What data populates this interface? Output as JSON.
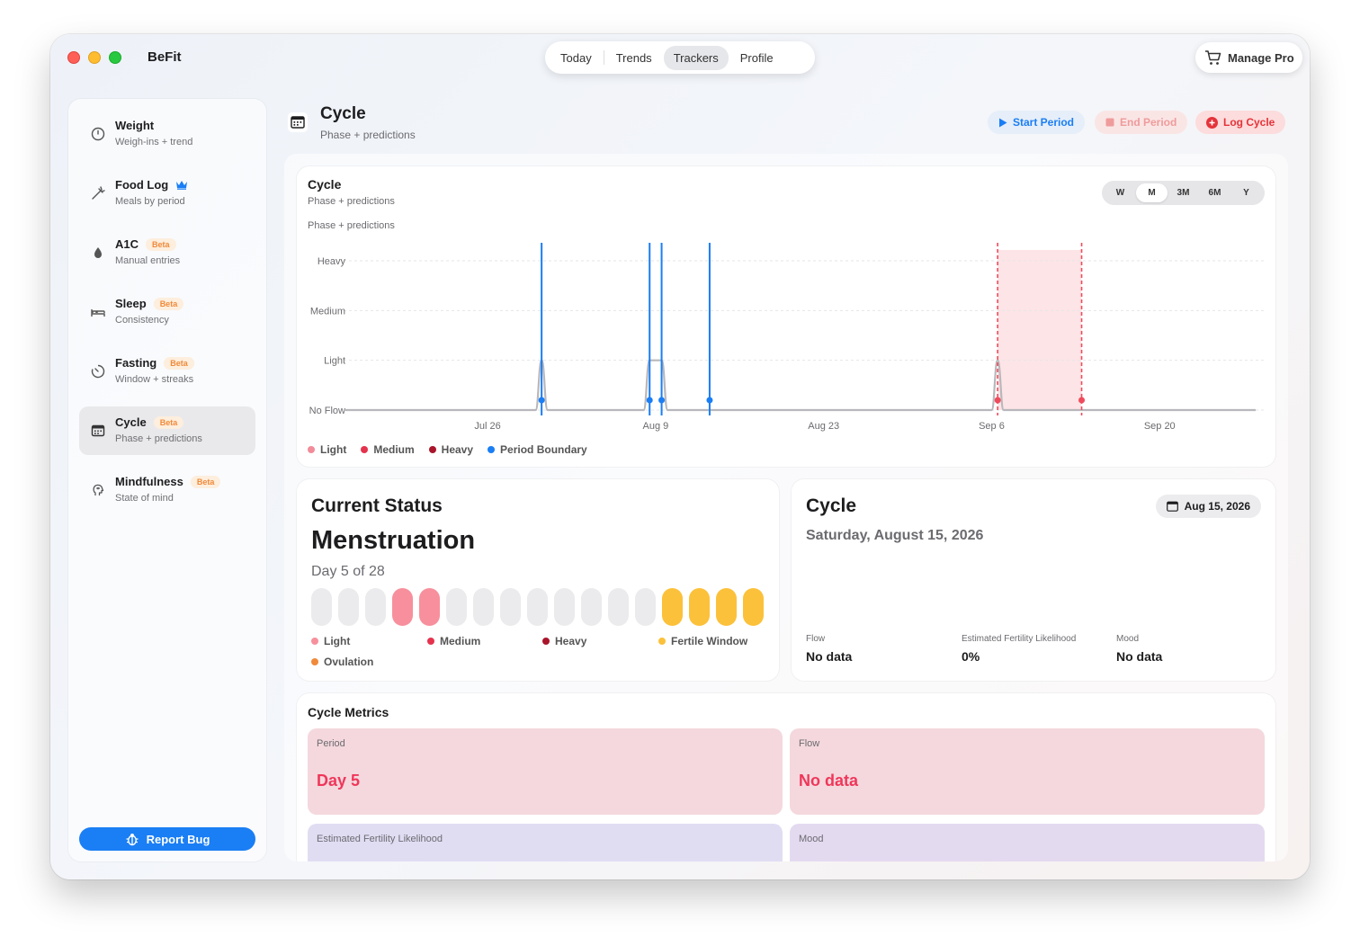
{
  "app": {
    "title": "BeFit"
  },
  "nav": {
    "tabs": [
      "Today",
      "Trends",
      "Trackers",
      "Profile"
    ],
    "active": "Trackers"
  },
  "manage_pro": "Manage Pro",
  "sidebar": {
    "items": [
      {
        "title": "Weight",
        "subtitle": "Weigh-ins + trend",
        "icon": "scale-icon"
      },
      {
        "title": "Food Log",
        "subtitle": "Meals by period",
        "icon": "carrot-icon",
        "crown": true
      },
      {
        "title": "A1C",
        "subtitle": "Manual entries",
        "icon": "drop-icon",
        "badge": "Beta"
      },
      {
        "title": "Sleep",
        "subtitle": "Consistency",
        "icon": "bed-icon",
        "badge": "Beta"
      },
      {
        "title": "Fasting",
        "subtitle": "Window + streaks",
        "icon": "timer-icon",
        "badge": "Beta"
      },
      {
        "title": "Cycle",
        "subtitle": "Phase + predictions",
        "icon": "calendar-icon",
        "badge": "Beta",
        "active": true
      },
      {
        "title": "Mindfulness",
        "subtitle": "State of mind",
        "icon": "head-icon",
        "badge": "Beta"
      }
    ],
    "report_bug": "Report Bug"
  },
  "header": {
    "title": "Cycle",
    "subtitle": "Phase + predictions",
    "start_period": "Start Period",
    "end_period": "End Period",
    "log_cycle": "Log Cycle"
  },
  "chart_card": {
    "title": "Cycle",
    "subtitle": "Phase + predictions",
    "subtitle2": "Phase + predictions",
    "ranges": [
      "W",
      "M",
      "3M",
      "6M",
      "Y"
    ],
    "active_range": "M"
  },
  "chart_data": {
    "type": "line",
    "y_labels": [
      "No Flow",
      "Light",
      "Medium",
      "Heavy"
    ],
    "ylim": [
      0,
      3
    ],
    "x_tick_labels": [
      "Jul 26",
      "Aug 9",
      "Aug 23",
      "Sep 6",
      "Sep 20"
    ],
    "x_ticks_day": [
      0,
      14,
      28,
      42,
      56
    ],
    "xlim_day": [
      -12,
      64
    ],
    "series": [
      {
        "points": [
          [
            -12,
            0
          ],
          [
            4,
            0
          ],
          [
            4.5,
            1
          ],
          [
            5,
            0
          ],
          [
            13,
            0
          ],
          [
            13.5,
            1
          ],
          [
            14,
            1
          ],
          [
            14.5,
            1
          ],
          [
            15,
            0
          ],
          [
            42,
            0
          ],
          [
            42.5,
            1
          ],
          [
            43,
            0
          ],
          [
            64,
            0
          ]
        ]
      }
    ],
    "period_boundaries_day": [
      4.5,
      13.5,
      14.5,
      18.5
    ],
    "predicted_window_day": [
      42.5,
      49.5
    ],
    "predicted_boundaries_day": [
      42.5,
      49.5
    ],
    "legend": [
      {
        "label": "Light",
        "color": "#f28b9a"
      },
      {
        "label": "Medium",
        "color": "#e5334d"
      },
      {
        "label": "Heavy",
        "color": "#a9152b"
      },
      {
        "label": "Period Boundary",
        "color": "#1a7ef5"
      }
    ],
    "grid": true
  },
  "status": {
    "title": "Current Status",
    "phase": "Menstruation",
    "day_text": "Day 5 of 28",
    "pills": [
      "none",
      "none",
      "none",
      "light",
      "light",
      "none",
      "none",
      "none",
      "none",
      "none",
      "none",
      "none",
      "none",
      "fertile",
      "fertile",
      "fertile",
      "fertile"
    ],
    "legend": [
      {
        "label": "Light",
        "color": "#f7909c"
      },
      {
        "label": "Medium",
        "color": "#e5334d"
      },
      {
        "label": "Heavy",
        "color": "#a9152b"
      },
      {
        "label": "Fertile Window",
        "color": "#fcc13a"
      },
      {
        "label": "Ovulation",
        "color": "#f08a3a"
      }
    ]
  },
  "cycle_info": {
    "title": "Cycle",
    "date_long": "Saturday, August 15, 2026",
    "date_chip": "Aug 15, 2026",
    "stats": [
      {
        "label": "Flow",
        "value": "No data"
      },
      {
        "label": "Estimated Fertility Likelihood",
        "value": "0%"
      },
      {
        "label": "Mood",
        "value": "No data"
      }
    ]
  },
  "metrics": {
    "title": "Cycle Metrics",
    "tiles": [
      {
        "label": "Period",
        "value": "Day 5"
      },
      {
        "label": "Flow",
        "value": "No data"
      },
      {
        "label": "Estimated Fertility Likelihood",
        "value": ""
      },
      {
        "label": "Mood",
        "value": ""
      }
    ]
  }
}
